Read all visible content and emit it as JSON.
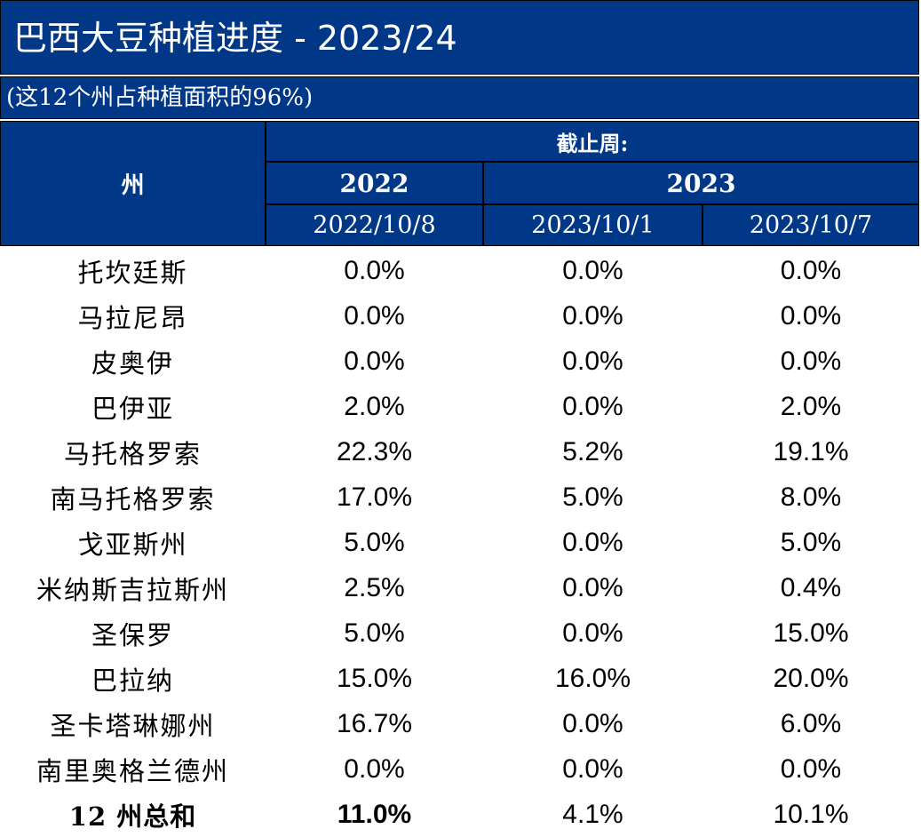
{
  "title": "巴西大豆种植进度 - 2023/24",
  "subtitle": "(这12个州占种植面积的96%)",
  "header": {
    "state_label": "州",
    "cutoff_label": "截止周:",
    "year_2022": "2022",
    "year_2023": "2023",
    "dates": [
      "2022/10/8",
      "2023/10/1",
      "2023/10/7"
    ]
  },
  "rows": [
    {
      "state": "托坎廷斯",
      "v2022_10_8": "0.0%",
      "v2023_10_1": "0.0%",
      "v2023_10_7": "0.0%"
    },
    {
      "state": "马拉尼昂",
      "v2022_10_8": "0.0%",
      "v2023_10_1": "0.0%",
      "v2023_10_7": "0.0%"
    },
    {
      "state": "皮奥伊",
      "v2022_10_8": "0.0%",
      "v2023_10_1": "0.0%",
      "v2023_10_7": "0.0%"
    },
    {
      "state": "巴伊亚",
      "v2022_10_8": "2.0%",
      "v2023_10_1": "0.0%",
      "v2023_10_7": "2.0%"
    },
    {
      "state": "马托格罗索",
      "v2022_10_8": "22.3%",
      "v2023_10_1": "5.2%",
      "v2023_10_7": "19.1%"
    },
    {
      "state": "南马托格罗索",
      "v2022_10_8": "17.0%",
      "v2023_10_1": "5.0%",
      "v2023_10_7": "8.0%"
    },
    {
      "state": "戈亚斯州",
      "v2022_10_8": "5.0%",
      "v2023_10_1": "0.0%",
      "v2023_10_7": "5.0%"
    },
    {
      "state": "米纳斯吉拉斯州",
      "v2022_10_8": "2.5%",
      "v2023_10_1": "0.0%",
      "v2023_10_7": "0.4%"
    },
    {
      "state": "圣保罗",
      "v2022_10_8": "5.0%",
      "v2023_10_1": "0.0%",
      "v2023_10_7": "15.0%"
    },
    {
      "state": "巴拉纳",
      "v2022_10_8": "15.0%",
      "v2023_10_1": "16.0%",
      "v2023_10_7": "20.0%"
    },
    {
      "state": "圣卡塔琳娜州",
      "v2022_10_8": "16.7%",
      "v2023_10_1": "0.0%",
      "v2023_10_7": "6.0%"
    },
    {
      "state": "南里奥格兰德州",
      "v2022_10_8": "0.0%",
      "v2023_10_1": "0.0%",
      "v2023_10_7": "0.0%"
    }
  ],
  "total": {
    "state": "12 州总和",
    "v2022_10_8": "11.0%",
    "v2023_10_1": "4.1%",
    "v2023_10_7": "10.1%"
  }
}
